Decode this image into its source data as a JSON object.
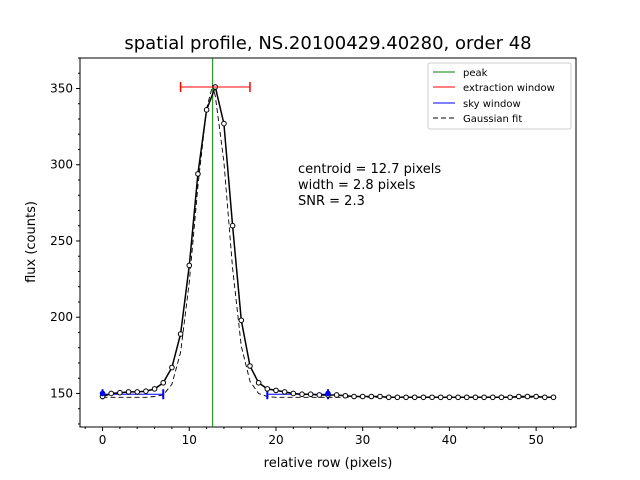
{
  "chart_data": {
    "type": "line",
    "title": "spatial profile, NS.20100429.40280, order 48",
    "xlabel": "relative row (pixels)",
    "ylabel": "flux (counts)",
    "xlim": [
      -2.6,
      54.6
    ],
    "ylim": [
      128,
      370
    ],
    "xticks": [
      0,
      10,
      20,
      30,
      40,
      50
    ],
    "yticks": [
      150,
      200,
      250,
      300,
      350
    ],
    "grid": false,
    "legend_position": "top-right",
    "legend": [
      {
        "label": "peak",
        "color": "#008000",
        "style": "solid"
      },
      {
        "label": "extraction window",
        "color": "#ff0000",
        "style": "solid"
      },
      {
        "label": "sky window",
        "color": "#0000ff",
        "style": "solid"
      },
      {
        "label": "Gaussian fit",
        "color": "#000000",
        "style": "dashed"
      }
    ],
    "annotations": [
      "centroid = 12.7 pixels",
      "width = 2.8 pixels",
      "SNR = 2.3"
    ],
    "profile": {
      "x": [
        0,
        1,
        2,
        3,
        4,
        5,
        6,
        7,
        8,
        9,
        10,
        11,
        12,
        13,
        14,
        15,
        16,
        17,
        18,
        19,
        20,
        21,
        22,
        23,
        24,
        25,
        26,
        27,
        28,
        29,
        30,
        31,
        32,
        33,
        34,
        35,
        36,
        37,
        38,
        39,
        40,
        41,
        42,
        43,
        44,
        45,
        46,
        47,
        48,
        49,
        50,
        51,
        52
      ],
      "y": [
        148,
        150,
        150.5,
        151,
        151,
        151.5,
        153,
        157,
        167,
        189,
        234,
        294,
        336,
        351,
        327,
        260,
        198,
        168,
        157,
        153,
        152,
        151,
        150,
        149.5,
        149.5,
        149,
        149,
        149,
        148.5,
        148,
        148,
        148,
        148,
        147.5,
        147.5,
        147.5,
        147.5,
        147.5,
        147.5,
        147.5,
        147.5,
        147.5,
        147.5,
        147.5,
        147.5,
        147.5,
        147.5,
        147.5,
        148,
        148,
        148,
        147.5,
        147.5
      ]
    },
    "gaussian_fit": {
      "x": [
        0,
        5,
        6,
        7,
        8,
        9,
        10,
        11,
        12,
        12.7,
        13,
        14,
        15,
        16,
        17,
        18,
        19,
        20,
        25,
        30,
        40,
        52
      ],
      "y": [
        147.5,
        147.5,
        148,
        149,
        156,
        177,
        223,
        286,
        337,
        352,
        345,
        302,
        232,
        181,
        158,
        150,
        148,
        147.5,
        147.5,
        147.5,
        147.5,
        147.5
      ]
    },
    "peak": {
      "x": 12.7
    },
    "extraction_window": {
      "x": [
        9,
        17
      ],
      "y": 351
    },
    "sky_windows": [
      {
        "x": [
          0,
          7
        ],
        "y": 149.5
      },
      {
        "x": [
          19,
          26
        ],
        "y": 149.5
      }
    ],
    "sky_window_points": {
      "x": [
        0,
        26
      ],
      "y": [
        150,
        150
      ]
    }
  }
}
